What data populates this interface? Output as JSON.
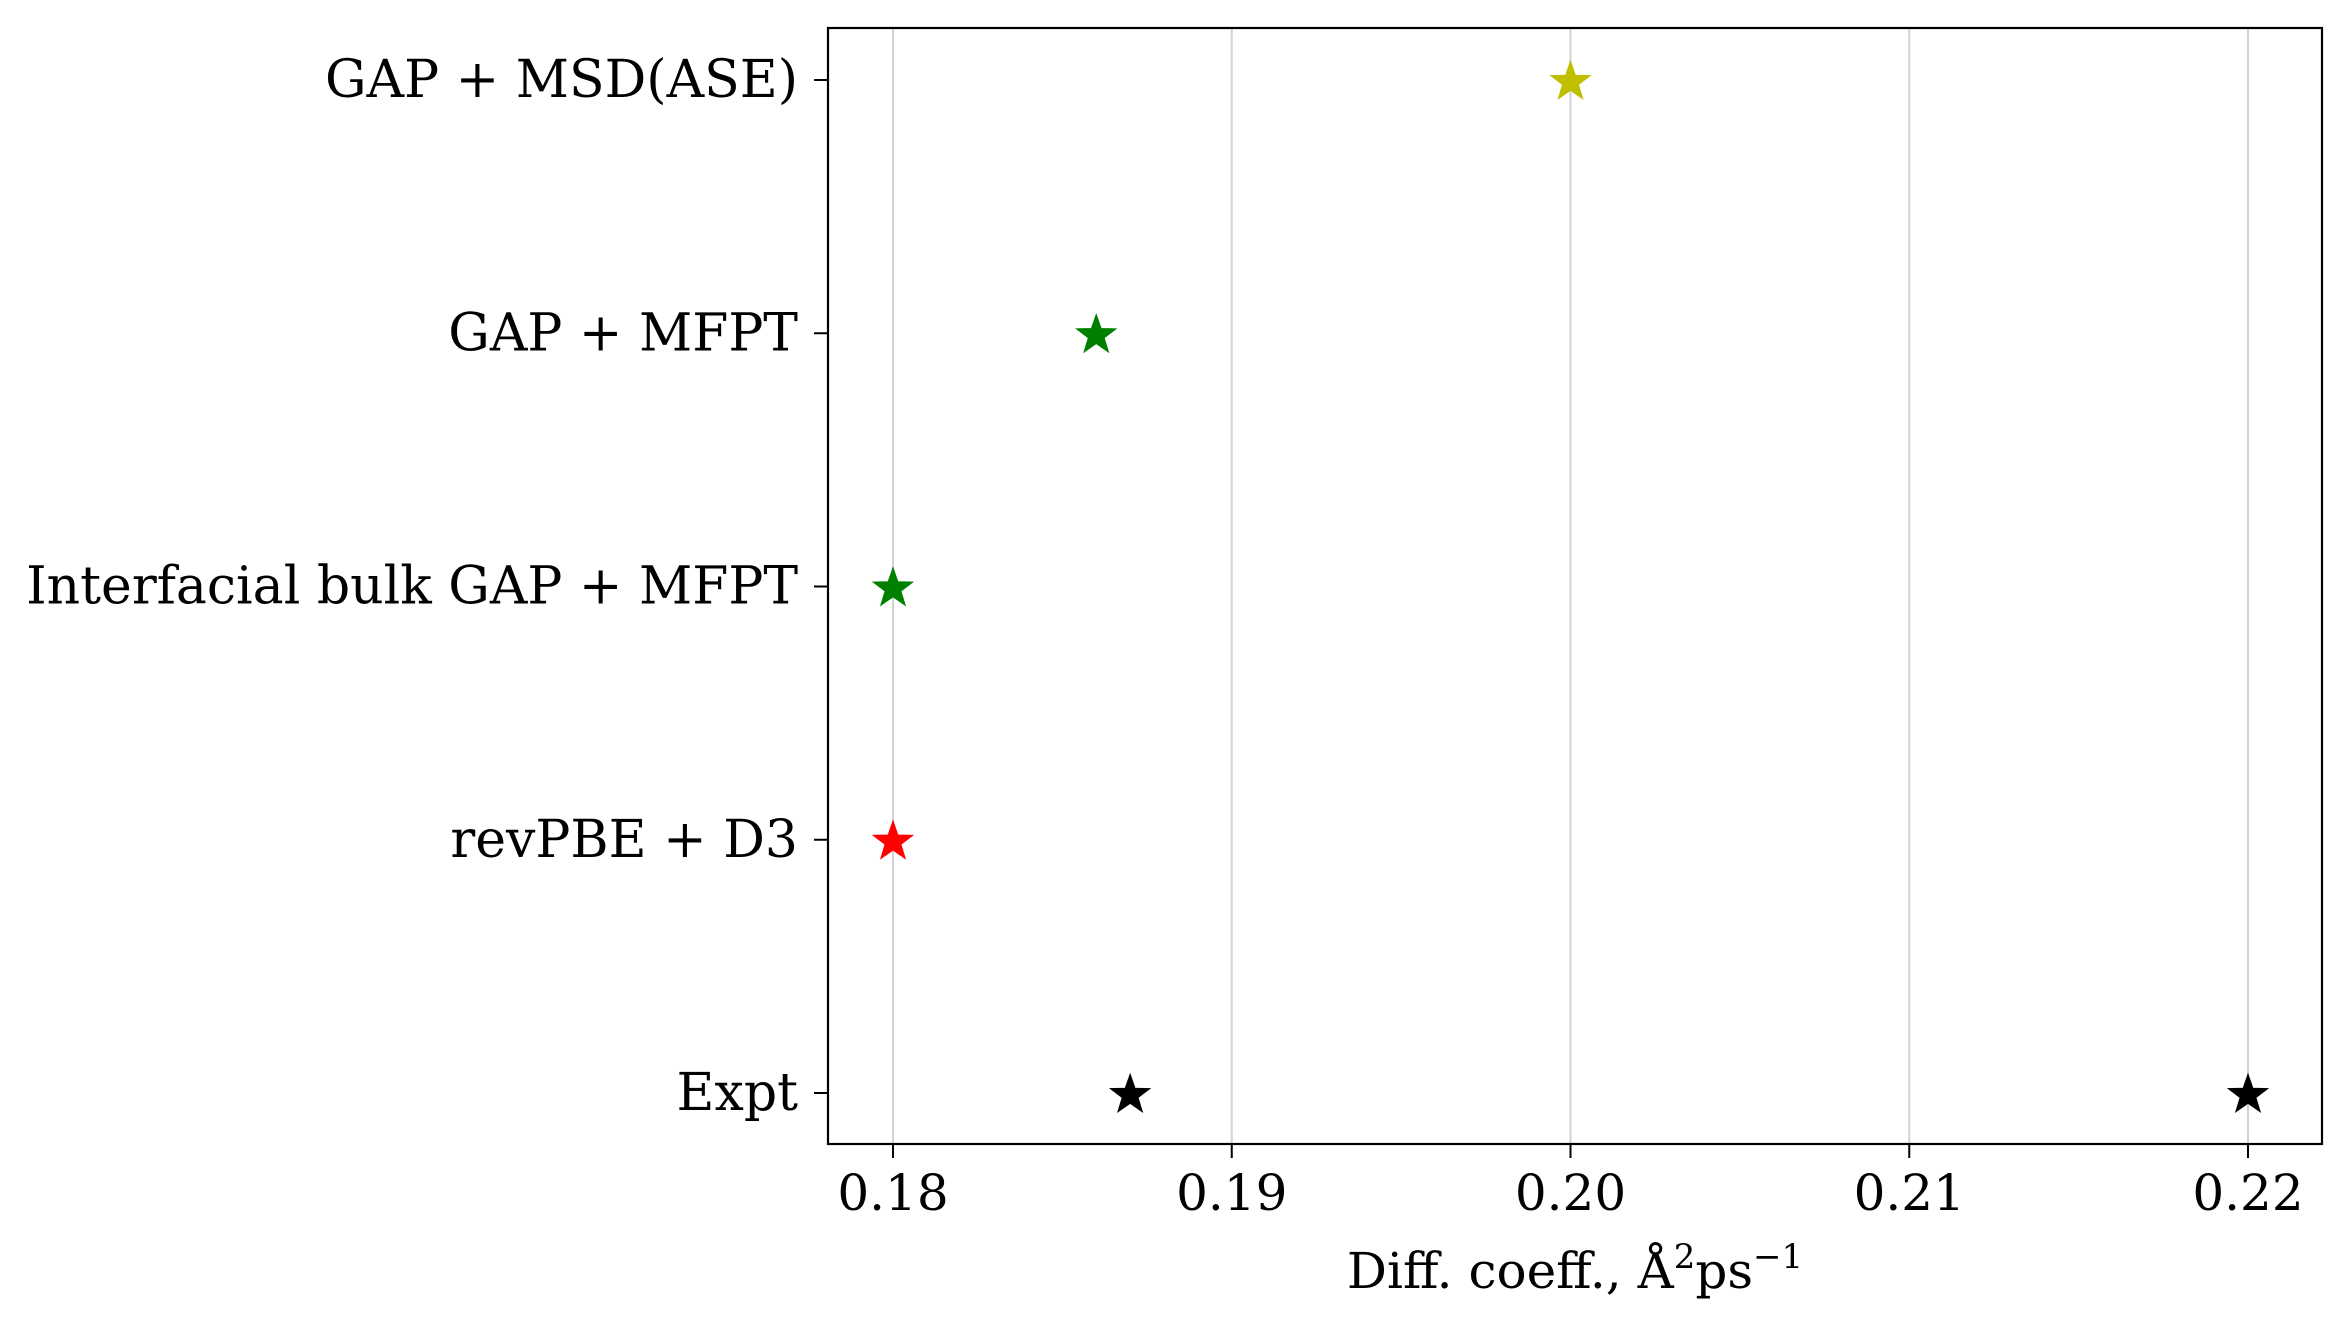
{
  "chart_data": {
    "type": "scatter",
    "title": "",
    "xlabel": "Diff. coeff., Å²ps⁻¹",
    "xlabel_parts": {
      "prefix": "Diff. coeff.,  Å",
      "sup1": "2",
      "mid": "ps",
      "sup2": "−1"
    },
    "ylabel": "",
    "xlim": [
      0.178,
      0.222
    ],
    "x_ticks": [
      0.18,
      0.19,
      0.2,
      0.21,
      0.22
    ],
    "x_tick_labels": [
      "0.18",
      "0.19",
      "0.20",
      "0.21",
      "0.22"
    ],
    "categories": [
      "GAP + MSD(ASE)",
      "GAP + MFPT",
      "Interfacial bulk GAP + MFPT",
      "revPBE + D3",
      "Expt"
    ],
    "grid": "vertical",
    "marker": "star",
    "points": [
      {
        "category": "GAP + MSD(ASE)",
        "x": 0.2,
        "color": "#bfbf00"
      },
      {
        "category": "GAP + MFPT",
        "x": 0.186,
        "color": "#008000"
      },
      {
        "category": "Interfacial bulk GAP + MFPT",
        "x": 0.18,
        "color": "#008000"
      },
      {
        "category": "revPBE + D3",
        "x": 0.18,
        "color": "#ff0000"
      },
      {
        "category": "Expt",
        "x": 0.187,
        "color": "#000000"
      },
      {
        "category": "Expt",
        "x": 0.22,
        "color": "#000000"
      }
    ],
    "colors": {
      "grid": "#d3d3d3",
      "axis": "#000000"
    }
  }
}
